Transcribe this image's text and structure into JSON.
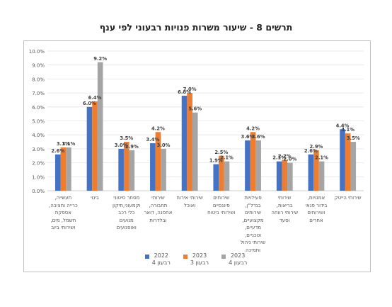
{
  "chart_data": {
    "type": "bar",
    "title": "תרשים 8 - שיעור משרות פנויות רבעוני לפי ענף",
    "ylim": [
      0,
      10
    ],
    "yticks": [
      "0.0%",
      "1.0%",
      "2.0%",
      "3.0%",
      "4.0%",
      "5.0%",
      "6.0%",
      "7.0%",
      "8.0%",
      "9.0%",
      "10.0%"
    ],
    "grid": true,
    "legend_position": "bottom",
    "categories": [
      "תעשייה, כרייה וחציבה, אספקת חשמל, מים, ושירותי ביוב",
      "בינוי",
      "מסחר סיטוני וקמעוני,תיקון כלי רכב מנועים ואופנועים",
      "שירותי תחבורה, אחסנה, דואר ובלדרות",
      "שירותי אירוח ואוכל",
      "שירותים פיננסיים ושירותי ביטוח",
      "פעילויות בנדל\"ן, שירותים מקצועיים, מדעיים, וטכניים, שירותי ניהול ותמיכה",
      "שירותי בריאות, שירותי רווחה וסעד",
      "אמנויות, בידור פנאי ושירותים אחרים",
      "שירותי הייטק"
    ],
    "series": [
      {
        "name": "2022 רבעון 4",
        "color": "#4472C4",
        "values": [
          2.6,
          6.0,
          3.0,
          3.4,
          6.8,
          1.9,
          3.6,
          2.1,
          2.6,
          4.4
        ]
      },
      {
        "name": "2023 רבעון 3",
        "color": "#ED7D31",
        "values": [
          3.1,
          6.4,
          3.5,
          4.2,
          7.0,
          2.5,
          4.2,
          2.2,
          2.9,
          4.1
        ]
      },
      {
        "name": "2023 רבעון 4",
        "color": "#A5A5A5",
        "values": [
          3.1,
          9.2,
          2.9,
          3.0,
          5.6,
          2.1,
          3.6,
          2.0,
          2.1,
          3.5
        ]
      }
    ],
    "value_labels": [
      [
        "2.6%",
        "6.0%",
        "3.0%",
        "3.4%",
        "6.8%",
        "1.9%",
        "3.6%",
        "2.1%",
        "2.6%",
        "4.4%"
      ],
      [
        "3.1%",
        "6.4%",
        "3.5%",
        "4.2%",
        "7.0%",
        "2.5%",
        "4.2%",
        "2.2%",
        "2.9%",
        "4.1%"
      ],
      [
        "3.1%",
        "9.2%",
        "2.9%",
        "3.0%",
        "5.6%",
        "2.1%",
        "3.6%",
        "2.0%",
        "2.1%",
        "3.5%"
      ]
    ]
  },
  "legend": [
    {
      "year": "2022",
      "quarter": "רבעון 4",
      "color": "#4472C4"
    },
    {
      "year": "2023",
      "quarter": "רבעון 3",
      "color": "#ED7D31"
    },
    {
      "year": "2023",
      "quarter": "רבעון 4",
      "color": "#A5A5A5"
    }
  ],
  "category_lines": [
    [
      "תעשייה,",
      "כרייה וחציבה,",
      "אספקת",
      "חשמל, מים,",
      "ושירותי ביוב"
    ],
    [
      "בינוי"
    ],
    [
      "מסחר סיטוני",
      "וקמעוני,תיקון",
      "כלי רכב",
      "מנועים",
      "ואופנועים"
    ],
    [
      "שירותי",
      "תחבורה,",
      "אחסנה, דואר",
      "ובלדרות"
    ],
    [
      "שירותי אירוח",
      "ואוכל"
    ],
    [
      "שירותים",
      "פיננסיים",
      "ושירותי ביטוח"
    ],
    [
      "פעילויות",
      "בנדל\"ן,",
      "שירותים",
      "מקצועיים,",
      "מדעיים,",
      "וטכניים,",
      "שירותי ניהול",
      "ותמיכה"
    ],
    [
      "שירותי",
      "בריאות,",
      "שירותי רווחה",
      "וסעד"
    ],
    [
      "אמנויות,",
      "בידור פנאי",
      "ושירותים",
      "אחרים"
    ],
    [
      "שירותי הייטק"
    ]
  ]
}
